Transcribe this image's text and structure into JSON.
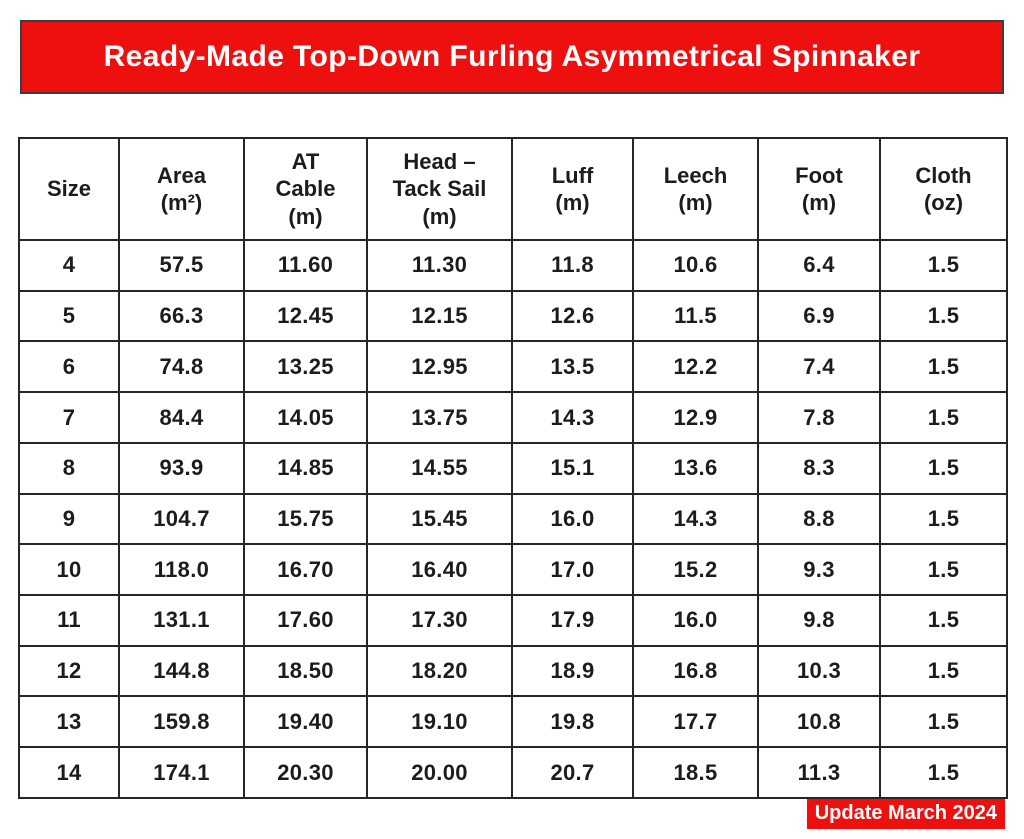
{
  "banner": {
    "title": "Ready-Made Top-Down Furling Asymmetrical Spinnaker"
  },
  "colors": {
    "accent_red": "#ee0f0f",
    "text": "#1c1c1c",
    "border": "#262626"
  },
  "table": {
    "headers": [
      "Size",
      "Area\n(m²)",
      "AT\nCable\n(m)",
      "Head –\nTack Sail\n(m)",
      "Luff\n(m)",
      "Leech\n(m)",
      "Foot\n(m)",
      "Cloth\n(oz)"
    ],
    "rows": [
      [
        "4",
        "57.5",
        "11.60",
        "11.30",
        "11.8",
        "10.6",
        "6.4",
        "1.5"
      ],
      [
        "5",
        "66.3",
        "12.45",
        "12.15",
        "12.6",
        "11.5",
        "6.9",
        "1.5"
      ],
      [
        "6",
        "74.8",
        "13.25",
        "12.95",
        "13.5",
        "12.2",
        "7.4",
        "1.5"
      ],
      [
        "7",
        "84.4",
        "14.05",
        "13.75",
        "14.3",
        "12.9",
        "7.8",
        "1.5"
      ],
      [
        "8",
        "93.9",
        "14.85",
        "14.55",
        "15.1",
        "13.6",
        "8.3",
        "1.5"
      ],
      [
        "9",
        "104.7",
        "15.75",
        "15.45",
        "16.0",
        "14.3",
        "8.8",
        "1.5"
      ],
      [
        "10",
        "118.0",
        "16.70",
        "16.40",
        "17.0",
        "15.2",
        "9.3",
        "1.5"
      ],
      [
        "11",
        "131.1",
        "17.60",
        "17.30",
        "17.9",
        "16.0",
        "9.8",
        "1.5"
      ],
      [
        "12",
        "144.8",
        "18.50",
        "18.20",
        "18.9",
        "16.8",
        "10.3",
        "1.5"
      ],
      [
        "13",
        "159.8",
        "19.40",
        "19.10",
        "19.8",
        "17.7",
        "10.8",
        "1.5"
      ],
      [
        "14",
        "174.1",
        "20.30",
        "20.00",
        "20.7",
        "18.5",
        "11.3",
        "1.5"
      ]
    ]
  },
  "footer": {
    "update_label": "Update March 2024"
  }
}
